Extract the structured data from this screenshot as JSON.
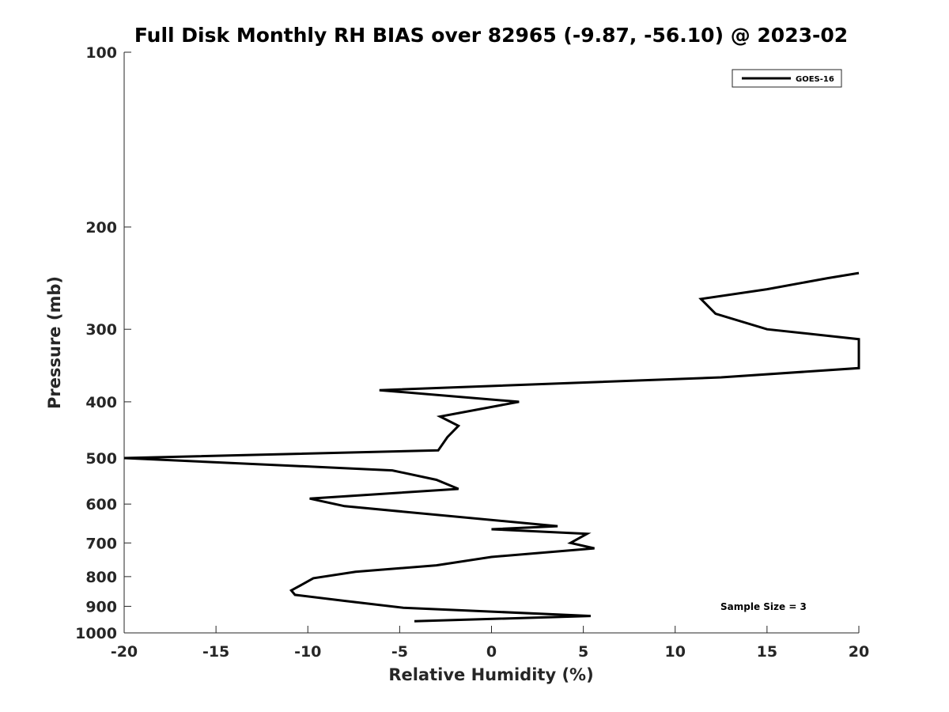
{
  "chart_data": {
    "type": "line",
    "title": "Full Disk Monthly RH BIAS over 82965 (-9.87, -56.10) @ 2023-02",
    "xlabel": "Relative Humidity (%)",
    "ylabel": "Pressure (mb)",
    "xlim": [
      -20,
      20
    ],
    "ylim": [
      100,
      1000
    ],
    "yscale": "log",
    "y_reversed": true,
    "grid": false,
    "legend_position": "top-right",
    "xticks": [
      -20,
      -15,
      -10,
      -5,
      0,
      5,
      10,
      15,
      20
    ],
    "yticks": [
      100,
      200,
      300,
      400,
      500,
      600,
      700,
      800,
      900,
      1000
    ],
    "annotation": "Sample Size = 3",
    "series": [
      {
        "name": "GOES-16",
        "color": "#000000",
        "x": [
          20,
          18.3,
          15.0,
          11.4,
          12.2,
          15.0,
          20,
          20,
          12.5,
          -6.1,
          1.5,
          -2.8,
          -1.8,
          -2.4,
          -2.9,
          -20,
          -5.4,
          -3.0,
          -1.8,
          -9.9,
          -8.0,
          3.6,
          0,
          5.2,
          4.3,
          5.6,
          0,
          -3.0,
          -7.4,
          -9.7,
          -10.3,
          -10.9,
          -10.7,
          -8.1,
          -4.8,
          5.4,
          -4.2
        ],
        "y": [
          240,
          245,
          256,
          266,
          282,
          300,
          312,
          350,
          363,
          382,
          400,
          424,
          440,
          460,
          485,
          500,
          525,
          545,
          565,
          587,
          605,
          655,
          663,
          675,
          700,
          715,
          740,
          765,
          785,
          805,
          825,
          845,
          860,
          880,
          905,
          935,
          955
        ]
      }
    ]
  }
}
